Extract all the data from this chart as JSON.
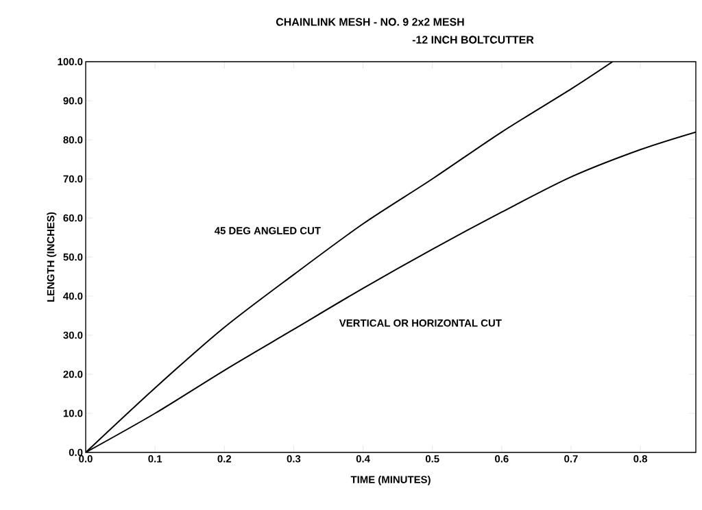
{
  "chart_data": {
    "type": "line",
    "title": "CHAINLINK MESH - NO. 9 2x2 MESH",
    "subtitle": "-12 INCH BOLTCUTTER",
    "xlabel": "TIME (MINUTES)",
    "ylabel": "LENGTH (INCHES)",
    "series": [
      {
        "name": "45 DEG ANGLED CUT",
        "color": "#000000",
        "x": [
          0,
          0.1,
          0.2,
          0.3,
          0.4,
          0.5,
          0.6,
          0.7,
          0.76
        ],
        "values": [
          0,
          16.5,
          32,
          45.5,
          58.5,
          70,
          82,
          93,
          100
        ]
      },
      {
        "name": "VERTICAL OR HORIZONTAL CUT",
        "color": "#000000",
        "x": [
          0,
          0.1,
          0.2,
          0.3,
          0.4,
          0.5,
          0.6,
          0.7,
          0.8,
          0.88
        ],
        "values": [
          0,
          10,
          21,
          31.5,
          42,
          52,
          61.5,
          70.5,
          77.5,
          82
        ]
      }
    ],
    "xlim": [
      0,
      0.88
    ],
    "ylim": [
      0,
      100
    ],
    "xticks": [
      {
        "value": 0,
        "label": "0.0"
      },
      0.1,
      0.2,
      0.3,
      0.4,
      0.5,
      0.6,
      0.7,
      0.8
    ],
    "yticks": [
      {
        "value": 0,
        "label": "0.0"
      },
      {
        "value": 10,
        "label": "10.0"
      },
      {
        "value": 20,
        "label": "20.0"
      },
      {
        "value": 30,
        "label": "30.0"
      },
      {
        "value": 40,
        "label": "40.0"
      },
      {
        "value": 50,
        "label": "50.0"
      },
      {
        "value": 60,
        "label": "60.0"
      },
      {
        "value": 70,
        "label": "70.0"
      },
      {
        "value": 80,
        "label": "80.0"
      },
      {
        "value": 90,
        "label": "90.0"
      },
      {
        "value": 100,
        "label": "100.0"
      }
    ],
    "grid": false,
    "legend": false,
    "marker": "none",
    "line_style": "solid"
  }
}
